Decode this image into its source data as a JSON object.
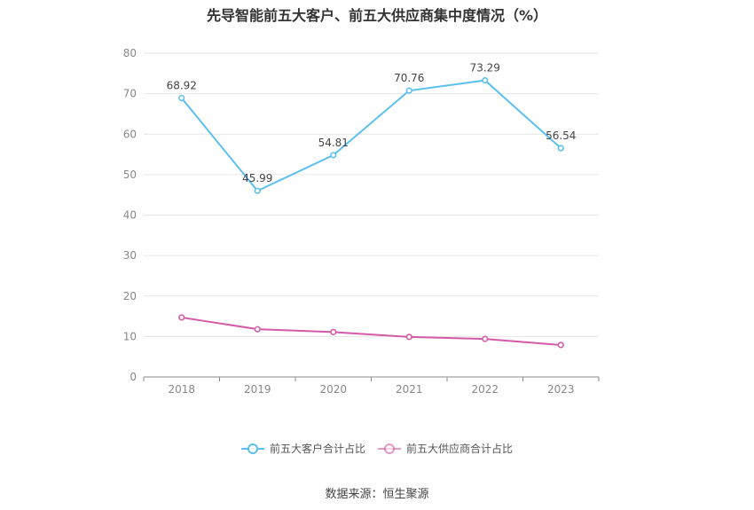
{
  "chart_data": {
    "type": "line",
    "title": "先导智能前五大客户、前五大供应商集中度情况（%）",
    "categories": [
      "2018",
      "2019",
      "2020",
      "2021",
      "2022",
      "2023"
    ],
    "ylim": [
      0,
      80
    ],
    "yticks": [
      0,
      10,
      20,
      30,
      40,
      50,
      60,
      70,
      80
    ],
    "grid": true,
    "legend_position": "bottom",
    "series": [
      {
        "name": "前五大客户合计占比",
        "values": [
          68.92,
          45.99,
          54.81,
          70.76,
          73.29,
          56.54
        ],
        "labels": [
          "68.92",
          "45.99",
          "54.81",
          "70.76",
          "73.29",
          "56.54"
        ],
        "color": "#5bc0f0"
      },
      {
        "name": "前五大供应商合计占比",
        "values": [
          14.7,
          11.8,
          11.1,
          9.9,
          9.4,
          7.9
        ],
        "labels": [],
        "color": "#d45aa8"
      }
    ]
  },
  "footer": {
    "source": "数据来源：恒生聚源"
  }
}
